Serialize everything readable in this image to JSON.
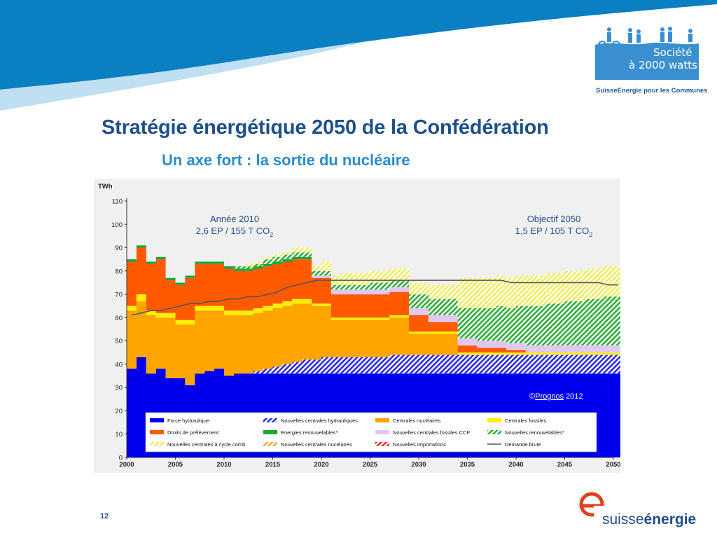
{
  "slide": {
    "title": "Stratégie énergétique 2050 de la Confédération",
    "subtitle": "Un axe fort : la sortie du nucléaire",
    "page_number": "12"
  },
  "logo": {
    "line1": "Société",
    "line2": "à 2000 watts",
    "tagline": "SuisseEnergie pour les Communes",
    "brand_prefix": "suisse",
    "brand_bold": "énergie"
  },
  "colors": {
    "band_dark": "#0a7fc2",
    "band_light": "#bfdff2",
    "logo_blue": "#3a8fd0",
    "title": "#1f4f8c",
    "subtitle": "#2b8ccd",
    "annotation": "#1f4f8c",
    "brand_red": "#e2401c"
  },
  "chart_data": {
    "type": "area",
    "ylabel": "TWh",
    "ylim": [
      0,
      110
    ],
    "yticks": [
      0,
      10,
      20,
      30,
      40,
      50,
      60,
      70,
      80,
      90,
      100,
      110
    ],
    "xlim": [
      2000,
      2050
    ],
    "xticks": [
      2000,
      2005,
      2010,
      2015,
      2020,
      2025,
      2030,
      2035,
      2040,
      2045,
      2050
    ],
    "annotations": [
      {
        "line1": "Année 2010",
        "line2": "2,6 EP / 155 T CO",
        "sub": "2"
      },
      {
        "line1": "Objectif 2050",
        "line2": "1,5 EP / 105 T CO",
        "sub": "2"
      }
    ],
    "copyright": {
      "symbol": "©",
      "link": "Prognos",
      "year": " 2012"
    },
    "legend": [
      {
        "key": "hydro",
        "label": "Force hydraulique",
        "color": "#0000ee",
        "style": "solid"
      },
      {
        "key": "new_hydro",
        "label": "Nouvelles centrales hydrauliques",
        "color": "#3a3aee",
        "style": "hatch"
      },
      {
        "key": "nuclear",
        "label": "Centrales nucléaires",
        "color": "#ffa500",
        "style": "solid"
      },
      {
        "key": "fossil",
        "label": "Centrales fossiles",
        "color": "#ffee00",
        "style": "solid"
      },
      {
        "key": "withdrawal",
        "label": "Droits de prélèvement",
        "color": "#ff5a00",
        "style": "solid"
      },
      {
        "key": "renewable",
        "label": "Energies renouvelables*",
        "color": "#16a83a",
        "style": "solid"
      },
      {
        "key": "ccf",
        "label": "Nouvelles centrales fossiles CCF",
        "color": "#e2c7f0",
        "style": "solid"
      },
      {
        "key": "new_renewable",
        "label": "Nouvelles renouvelables*",
        "color": "#2eae3a",
        "style": "hatch"
      },
      {
        "key": "new_combined",
        "label": "Nouvelles centrales à cycle comb.",
        "color": "#f2ec5a",
        "style": "hatch"
      },
      {
        "key": "new_nuclear",
        "label": "Nouvelles centrales nucléaires",
        "color": "#f7a940",
        "style": "hatch"
      },
      {
        "key": "new_imports",
        "label": "Nouvelles importations",
        "color": "#ee3030",
        "style": "hatch"
      },
      {
        "key": "demand",
        "label": "Demande brute",
        "color": "#555555",
        "style": "line"
      }
    ],
    "years": [
      2000,
      2001,
      2002,
      2003,
      2004,
      2005,
      2006,
      2007,
      2008,
      2009,
      2010,
      2011,
      2012,
      2013,
      2014,
      2015,
      2016,
      2017,
      2018,
      2019,
      2020,
      2021,
      2022,
      2023,
      2024,
      2025,
      2026,
      2027,
      2028,
      2029,
      2030,
      2031,
      2032,
      2033,
      2034,
      2035,
      2036,
      2037,
      2038,
      2039,
      2040,
      2041,
      2042,
      2043,
      2044,
      2045,
      2046,
      2047,
      2048,
      2049,
      2050
    ],
    "series": [
      {
        "key": "hydro",
        "values": [
          38,
          43,
          36,
          38,
          34,
          34,
          31,
          36,
          37,
          38,
          35,
          36,
          36,
          36,
          36,
          36,
          36,
          36,
          36,
          36,
          36,
          36,
          36,
          36,
          36,
          36,
          36,
          36,
          36,
          36,
          36,
          36,
          36,
          36,
          36,
          36,
          36,
          36,
          36,
          36,
          36,
          36,
          36,
          36,
          36,
          36,
          36,
          36,
          36,
          36,
          36
        ]
      },
      {
        "key": "new_hydro",
        "values": [
          0,
          0,
          0,
          0,
          0,
          0,
          0,
          0,
          0,
          0,
          0,
          0,
          0,
          1,
          2,
          3,
          4,
          5,
          6,
          6,
          7,
          7,
          7,
          7,
          7,
          7,
          7,
          8,
          8,
          8,
          8,
          8,
          8,
          8,
          8,
          8,
          8,
          8,
          8,
          8,
          8,
          8,
          8,
          8,
          8,
          8,
          8,
          8,
          8,
          8,
          8
        ]
      },
      {
        "key": "nuclear",
        "values": [
          25,
          24,
          25,
          22,
          26,
          23,
          26,
          27,
          26,
          25,
          26,
          25,
          25,
          25,
          25,
          25,
          25,
          25,
          24,
          23,
          22,
          16,
          16,
          16,
          16,
          16,
          16,
          16,
          16,
          9,
          9,
          9,
          9,
          9,
          0,
          0,
          0,
          0,
          0,
          0,
          0,
          0,
          0,
          0,
          0,
          0,
          0,
          0,
          0,
          0,
          0
        ]
      },
      {
        "key": "fossil",
        "values": [
          2,
          3,
          2,
          2,
          2,
          2,
          2,
          2,
          2,
          2,
          2,
          2,
          2,
          2,
          2,
          2,
          2,
          2,
          2,
          1,
          1,
          1,
          1,
          1,
          1,
          1,
          1,
          1,
          1,
          1,
          1,
          1,
          1,
          1,
          1,
          1,
          1,
          1,
          1,
          1,
          1,
          1,
          1,
          1,
          1,
          1,
          1,
          1,
          1,
          1,
          1
        ]
      },
      {
        "key": "withdrawal",
        "values": [
          19,
          20,
          20,
          23,
          14,
          15,
          18,
          18,
          18,
          18,
          18,
          17,
          17,
          17,
          17,
          17,
          17,
          17,
          17,
          11,
          11,
          10,
          10,
          10,
          10,
          10,
          10,
          10,
          10,
          7,
          7,
          4,
          4,
          4,
          3,
          3,
          2,
          2,
          2,
          1,
          1,
          0,
          0,
          0,
          0,
          0,
          0,
          0,
          0,
          0,
          0
        ]
      },
      {
        "key": "renewable",
        "values": [
          1,
          1,
          1,
          1,
          1,
          1,
          1,
          1,
          1,
          1,
          1,
          1,
          1,
          1,
          1,
          1,
          1,
          1,
          1,
          0,
          0,
          0,
          0,
          0,
          0,
          0,
          0,
          0,
          0,
          0,
          0,
          0,
          0,
          0,
          0,
          0,
          0,
          0,
          0,
          0,
          0,
          0,
          0,
          0,
          0,
          0,
          0,
          0,
          0,
          0,
          0
        ]
      },
      {
        "key": "ccf",
        "values": [
          0,
          0,
          0,
          0,
          0,
          0,
          0,
          0,
          0,
          0,
          0,
          0,
          0,
          0,
          0,
          0,
          0,
          0,
          0,
          1,
          1,
          2,
          2,
          2,
          2,
          2,
          2,
          2,
          2,
          3,
          3,
          3,
          3,
          3,
          3,
          3,
          3,
          3,
          3,
          3,
          3,
          3,
          3,
          3,
          3,
          3,
          3,
          3,
          3,
          3,
          3
        ]
      },
      {
        "key": "new_renewable",
        "values": [
          0,
          0,
          0,
          0,
          0,
          0,
          0,
          0,
          0,
          0,
          0,
          1,
          1,
          1,
          2,
          2,
          2,
          2,
          2,
          2,
          2,
          2,
          2,
          2,
          2,
          3,
          3,
          3,
          3,
          6,
          6,
          7,
          7,
          7,
          13,
          13,
          14,
          14,
          15,
          15,
          16,
          17,
          17,
          18,
          18,
          19,
          19,
          20,
          20,
          21,
          21
        ]
      },
      {
        "key": "new_combined",
        "values": [
          0,
          0,
          0,
          0,
          0,
          0,
          0,
          0,
          0,
          0,
          0,
          0,
          1,
          1,
          1,
          1,
          1,
          2,
          2,
          2,
          4,
          4,
          5,
          5,
          5,
          5,
          5,
          5,
          5,
          5,
          5,
          6,
          6,
          6,
          13,
          13,
          13,
          13,
          13,
          13,
          13,
          13,
          13,
          13,
          13,
          13,
          13,
          13,
          13,
          13,
          13
        ]
      }
    ],
    "demand": [
      61,
      62,
      63,
      63,
      64,
      65,
      66,
      66,
      67,
      67,
      68,
      68,
      69,
      69,
      70,
      71,
      73,
      74,
      75,
      76,
      76,
      76,
      76,
      76,
      76,
      76,
      76,
      76,
      76,
      76,
      76,
      76,
      76,
      76,
      76,
      76,
      76,
      76,
      76,
      75,
      75,
      75,
      75,
      75,
      75,
      75,
      75,
      75,
      75,
      74,
      74
    ]
  }
}
